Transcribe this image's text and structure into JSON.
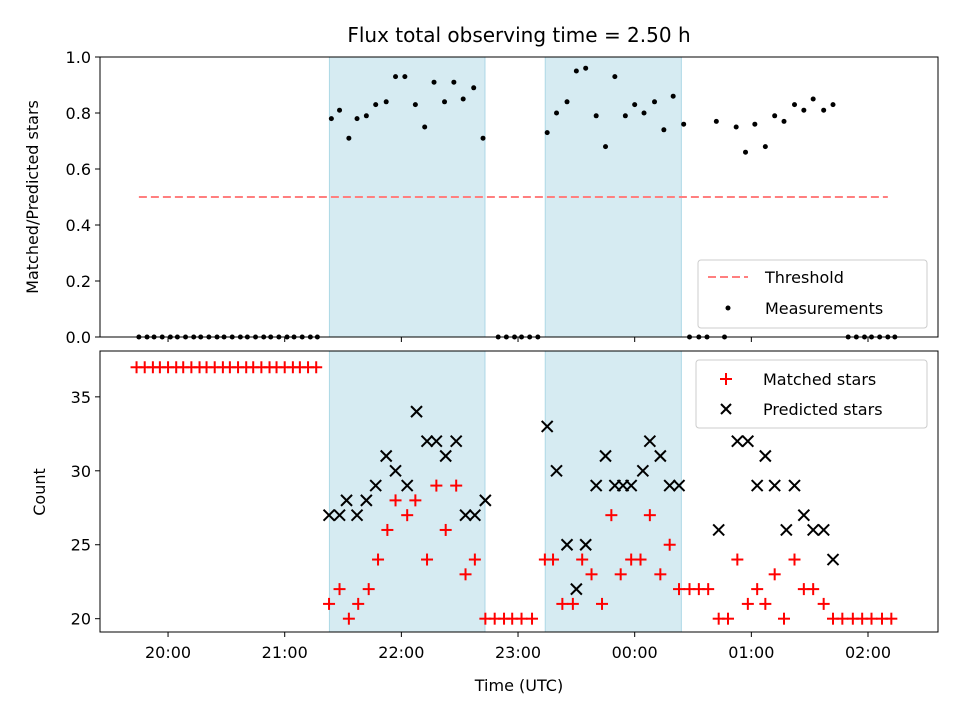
{
  "chart_data": [
    {
      "type": "scatter",
      "title": "Flux total observing time = 2.50 h",
      "xlabel": "",
      "ylabel": "Matched/Predicted stars",
      "xlim_hours": [
        19.4167,
        26.6
      ],
      "ylim": [
        0,
        1.0
      ],
      "yticks": [
        0.0,
        0.2,
        0.4,
        0.6,
        0.8,
        1.0
      ],
      "ytick_labels": [
        "0.0",
        "0.2",
        "0.4",
        "0.6",
        "0.8",
        "1.0"
      ],
      "shaded_intervals": [
        [
          21.3833,
          22.7167
        ],
        [
          23.2333,
          24.4
        ]
      ],
      "threshold": {
        "label": "Threshold",
        "value": 0.5,
        "x_range": [
          19.75,
          26.17
        ],
        "color": "#ff7f7f"
      },
      "legend_position": "lower-right",
      "series": [
        {
          "name": "Measurements",
          "color": "#000000",
          "points": [
            [
              19.75,
              0
            ],
            [
              19.82,
              0
            ],
            [
              19.88,
              0
            ],
            [
              19.95,
              0
            ],
            [
              20.02,
              0
            ],
            [
              20.08,
              0
            ],
            [
              20.15,
              0
            ],
            [
              20.22,
              0
            ],
            [
              20.28,
              0
            ],
            [
              20.35,
              0
            ],
            [
              20.42,
              0
            ],
            [
              20.48,
              0
            ],
            [
              20.55,
              0
            ],
            [
              20.62,
              0
            ],
            [
              20.68,
              0
            ],
            [
              20.75,
              0
            ],
            [
              20.82,
              0
            ],
            [
              20.88,
              0
            ],
            [
              20.95,
              0
            ],
            [
              21.02,
              0
            ],
            [
              21.08,
              0
            ],
            [
              21.15,
              0
            ],
            [
              21.22,
              0
            ],
            [
              21.28,
              0
            ],
            [
              21.4,
              0.78
            ],
            [
              21.47,
              0.81
            ],
            [
              21.55,
              0.71
            ],
            [
              21.62,
              0.78
            ],
            [
              21.7,
              0.79
            ],
            [
              21.78,
              0.83
            ],
            [
              21.87,
              0.84
            ],
            [
              21.95,
              0.93
            ],
            [
              22.03,
              0.93
            ],
            [
              22.12,
              0.83
            ],
            [
              22.2,
              0.75
            ],
            [
              22.28,
              0.91
            ],
            [
              22.37,
              0.84
            ],
            [
              22.45,
              0.91
            ],
            [
              22.53,
              0.85
            ],
            [
              22.62,
              0.89
            ],
            [
              22.7,
              0.71
            ],
            [
              22.83,
              0
            ],
            [
              22.9,
              0
            ],
            [
              22.97,
              0
            ],
            [
              23.03,
              0
            ],
            [
              23.1,
              0
            ],
            [
              23.17,
              0
            ],
            [
              23.25,
              0.73
            ],
            [
              23.33,
              0.8
            ],
            [
              23.42,
              0.84
            ],
            [
              23.5,
              0.95
            ],
            [
              23.58,
              0.96
            ],
            [
              23.67,
              0.79
            ],
            [
              23.75,
              0.68
            ],
            [
              23.83,
              0.93
            ],
            [
              23.92,
              0.79
            ],
            [
              24.0,
              0.83
            ],
            [
              24.08,
              0.8
            ],
            [
              24.17,
              0.84
            ],
            [
              24.25,
              0.74
            ],
            [
              24.33,
              0.86
            ],
            [
              24.42,
              0.76
            ],
            [
              24.47,
              0
            ],
            [
              24.55,
              0
            ],
            [
              24.62,
              0
            ],
            [
              24.77,
              0
            ],
            [
              24.7,
              0.77
            ],
            [
              24.87,
              0.75
            ],
            [
              24.95,
              0.66
            ],
            [
              25.03,
              0.76
            ],
            [
              25.12,
              0.68
            ],
            [
              25.2,
              0.79
            ],
            [
              25.28,
              0.77
            ],
            [
              25.37,
              0.83
            ],
            [
              25.45,
              0.81
            ],
            [
              25.53,
              0.85
            ],
            [
              25.62,
              0.81
            ],
            [
              25.7,
              0.83
            ],
            [
              25.83,
              0
            ],
            [
              25.9,
              0
            ],
            [
              25.97,
              0
            ],
            [
              26.03,
              0
            ],
            [
              26.1,
              0
            ],
            [
              26.17,
              0
            ],
            [
              26.23,
              0
            ]
          ]
        }
      ]
    },
    {
      "type": "scatter",
      "title": "",
      "xlabel": "Time (UTC)",
      "ylabel": "Count",
      "xlim_hours": [
        19.4167,
        26.6
      ],
      "ylim": [
        19.1,
        38.1
      ],
      "yticks": [
        20,
        25,
        30,
        35
      ],
      "ytick_labels": [
        "20",
        "25",
        "30",
        "35"
      ],
      "xticks_hours": [
        20,
        21,
        22,
        23,
        24,
        25,
        26
      ],
      "xtick_labels": [
        "20:00",
        "21:00",
        "22:00",
        "23:00",
        "00:00",
        "01:00",
        "02:00"
      ],
      "shaded_intervals": [
        [
          21.3833,
          22.7167
        ],
        [
          23.2333,
          24.4
        ]
      ],
      "legend_position": "upper-right",
      "series": [
        {
          "name": "Matched stars",
          "marker": "plus",
          "color": "#ff0000",
          "points": [
            [
              19.73,
              37
            ],
            [
              19.8,
              37
            ],
            [
              19.87,
              37
            ],
            [
              19.93,
              37
            ],
            [
              20.0,
              37
            ],
            [
              20.07,
              37
            ],
            [
              20.13,
              37
            ],
            [
              20.2,
              37
            ],
            [
              20.27,
              37
            ],
            [
              20.33,
              37
            ],
            [
              20.4,
              37
            ],
            [
              20.47,
              37
            ],
            [
              20.53,
              37
            ],
            [
              20.6,
              37
            ],
            [
              20.67,
              37
            ],
            [
              20.73,
              37
            ],
            [
              20.8,
              37
            ],
            [
              20.87,
              37
            ],
            [
              20.93,
              37
            ],
            [
              21.0,
              37
            ],
            [
              21.07,
              37
            ],
            [
              21.13,
              37
            ],
            [
              21.2,
              37
            ],
            [
              21.27,
              37
            ],
            [
              21.38,
              21
            ],
            [
              21.47,
              22
            ],
            [
              21.55,
              20
            ],
            [
              21.63,
              21
            ],
            [
              21.72,
              22
            ],
            [
              21.8,
              24
            ],
            [
              21.88,
              26
            ],
            [
              21.95,
              28
            ],
            [
              22.05,
              27
            ],
            [
              22.12,
              28
            ],
            [
              22.22,
              24
            ],
            [
              22.3,
              29
            ],
            [
              22.38,
              26
            ],
            [
              22.47,
              29
            ],
            [
              22.55,
              23
            ],
            [
              22.63,
              24
            ],
            [
              22.72,
              20
            ],
            [
              22.8,
              20
            ],
            [
              22.88,
              20
            ],
            [
              22.95,
              20
            ],
            [
              23.03,
              20
            ],
            [
              23.12,
              20
            ],
            [
              23.23,
              24
            ],
            [
              23.3,
              24
            ],
            [
              23.38,
              21
            ],
            [
              23.47,
              21
            ],
            [
              23.55,
              24
            ],
            [
              23.63,
              23
            ],
            [
              23.72,
              21
            ],
            [
              23.8,
              27
            ],
            [
              23.88,
              23
            ],
            [
              23.97,
              24
            ],
            [
              24.05,
              24
            ],
            [
              24.13,
              27
            ],
            [
              24.22,
              23
            ],
            [
              24.3,
              25
            ],
            [
              24.38,
              22
            ],
            [
              24.47,
              22
            ],
            [
              24.55,
              22
            ],
            [
              24.63,
              22
            ],
            [
              24.72,
              20
            ],
            [
              24.8,
              20
            ],
            [
              24.88,
              24
            ],
            [
              24.97,
              21
            ],
            [
              25.05,
              22
            ],
            [
              25.12,
              21
            ],
            [
              25.2,
              23
            ],
            [
              25.28,
              20
            ],
            [
              25.37,
              24
            ],
            [
              25.45,
              22
            ],
            [
              25.53,
              22
            ],
            [
              25.62,
              21
            ],
            [
              25.7,
              20
            ],
            [
              25.78,
              20
            ],
            [
              25.87,
              20
            ],
            [
              25.95,
              20
            ],
            [
              26.03,
              20
            ],
            [
              26.12,
              20
            ],
            [
              26.2,
              20
            ]
          ]
        },
        {
          "name": "Predicted stars",
          "marker": "x",
          "color": "#000000",
          "points": [
            [
              21.38,
              27
            ],
            [
              21.47,
              27
            ],
            [
              21.53,
              28
            ],
            [
              21.62,
              27
            ],
            [
              21.7,
              28
            ],
            [
              21.78,
              29
            ],
            [
              21.87,
              31
            ],
            [
              21.95,
              30
            ],
            [
              22.05,
              29
            ],
            [
              22.13,
              34
            ],
            [
              22.22,
              32
            ],
            [
              22.3,
              32
            ],
            [
              22.38,
              31
            ],
            [
              22.47,
              32
            ],
            [
              22.55,
              27
            ],
            [
              22.63,
              27
            ],
            [
              22.72,
              28
            ],
            [
              23.25,
              33
            ],
            [
              23.33,
              30
            ],
            [
              23.42,
              25
            ],
            [
              23.5,
              22
            ],
            [
              23.58,
              25
            ],
            [
              23.67,
              29
            ],
            [
              23.75,
              31
            ],
            [
              23.83,
              29
            ],
            [
              23.9,
              29
            ],
            [
              23.97,
              29
            ],
            [
              24.07,
              30
            ],
            [
              24.13,
              32
            ],
            [
              24.22,
              31
            ],
            [
              24.3,
              29
            ],
            [
              24.38,
              29
            ],
            [
              24.72,
              26
            ],
            [
              24.88,
              32
            ],
            [
              24.97,
              32
            ],
            [
              25.05,
              29
            ],
            [
              25.12,
              31
            ],
            [
              25.2,
              29
            ],
            [
              25.3,
              26
            ],
            [
              25.37,
              29
            ],
            [
              25.45,
              27
            ],
            [
              25.53,
              26
            ],
            [
              25.62,
              26
            ],
            [
              25.7,
              24
            ]
          ]
        }
      ]
    }
  ]
}
